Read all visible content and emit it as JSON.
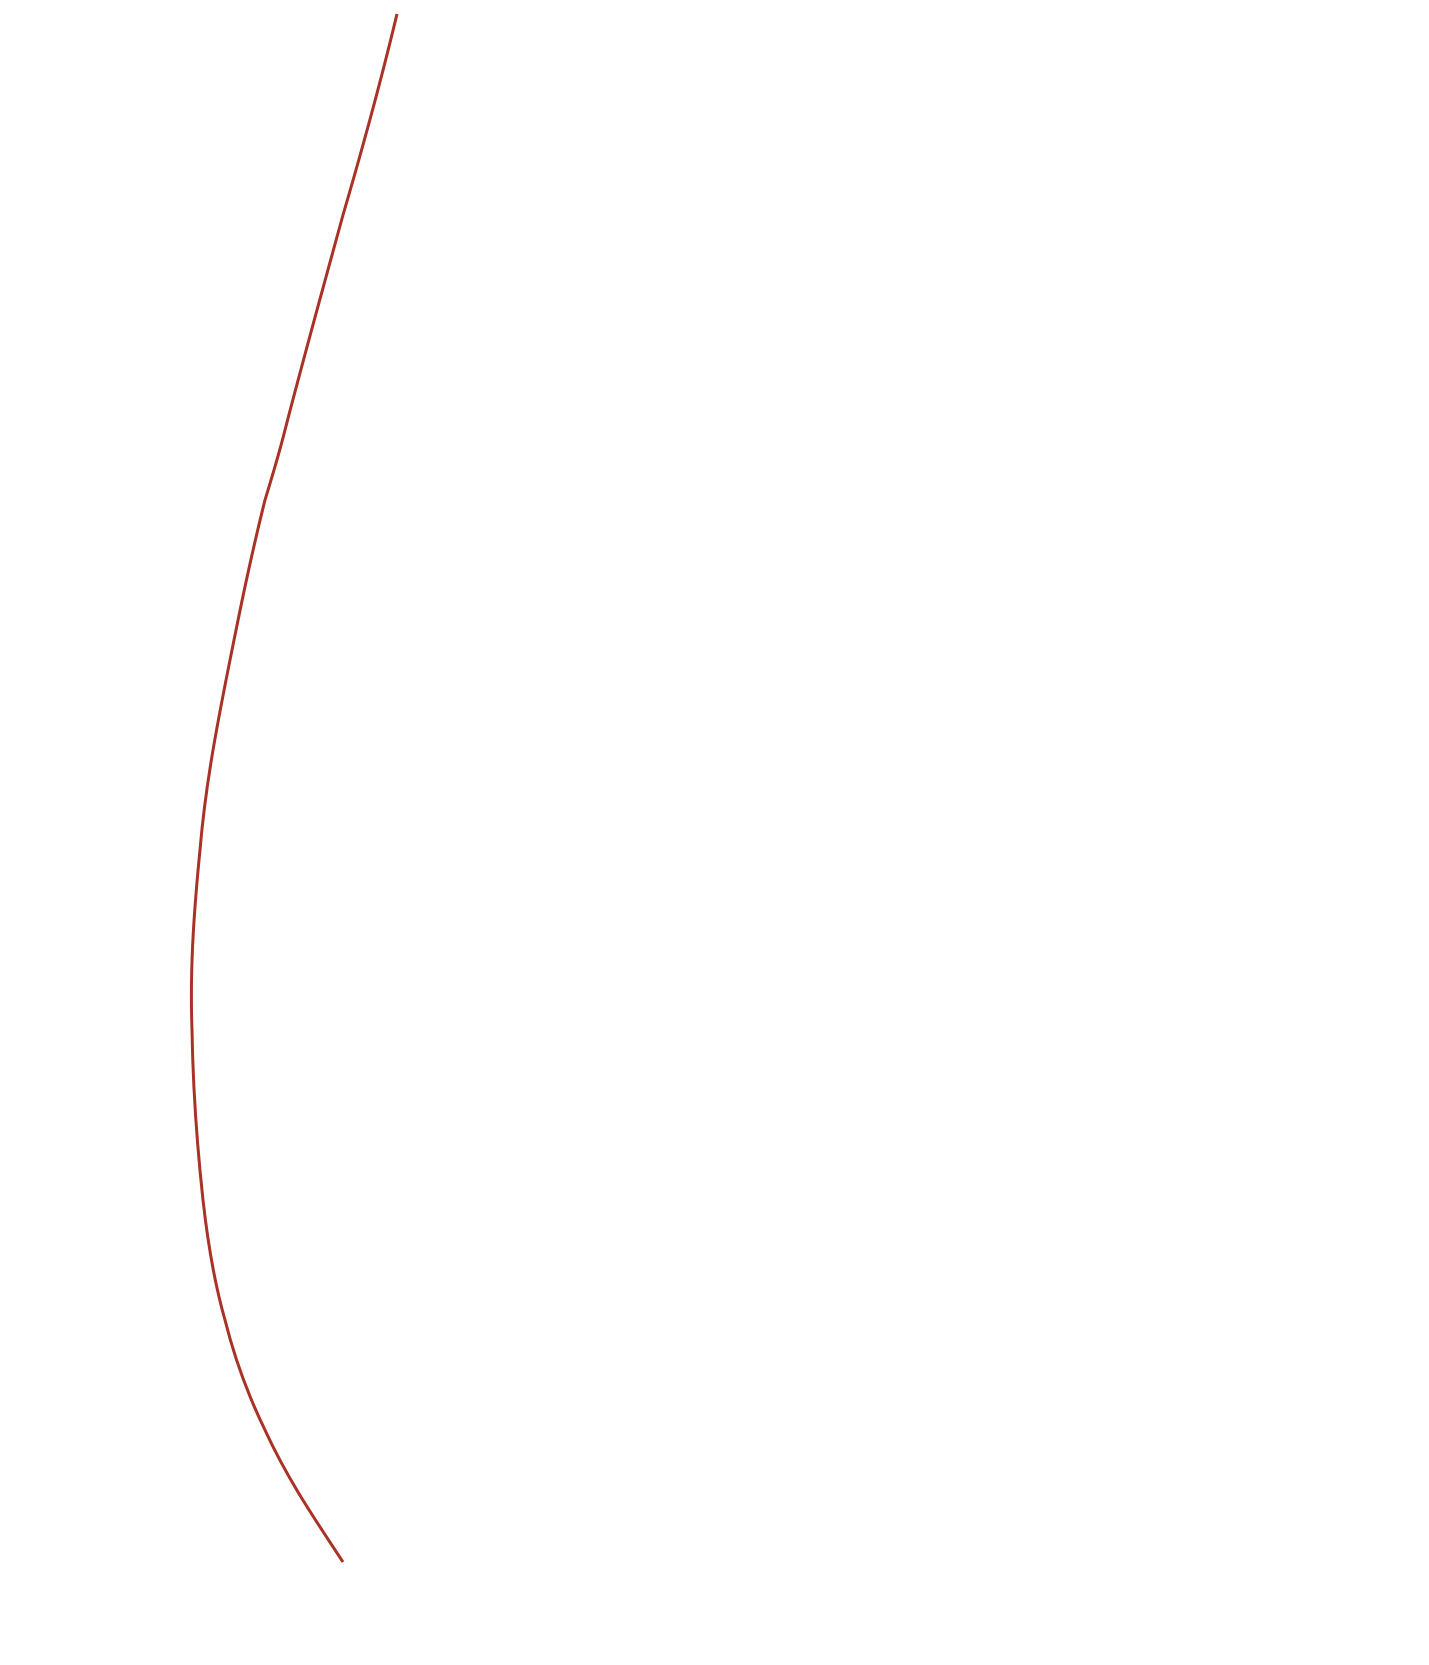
{
  "background_color": "#ffffff",
  "curve": {
    "stroke_color": "#a93226"
  }
}
